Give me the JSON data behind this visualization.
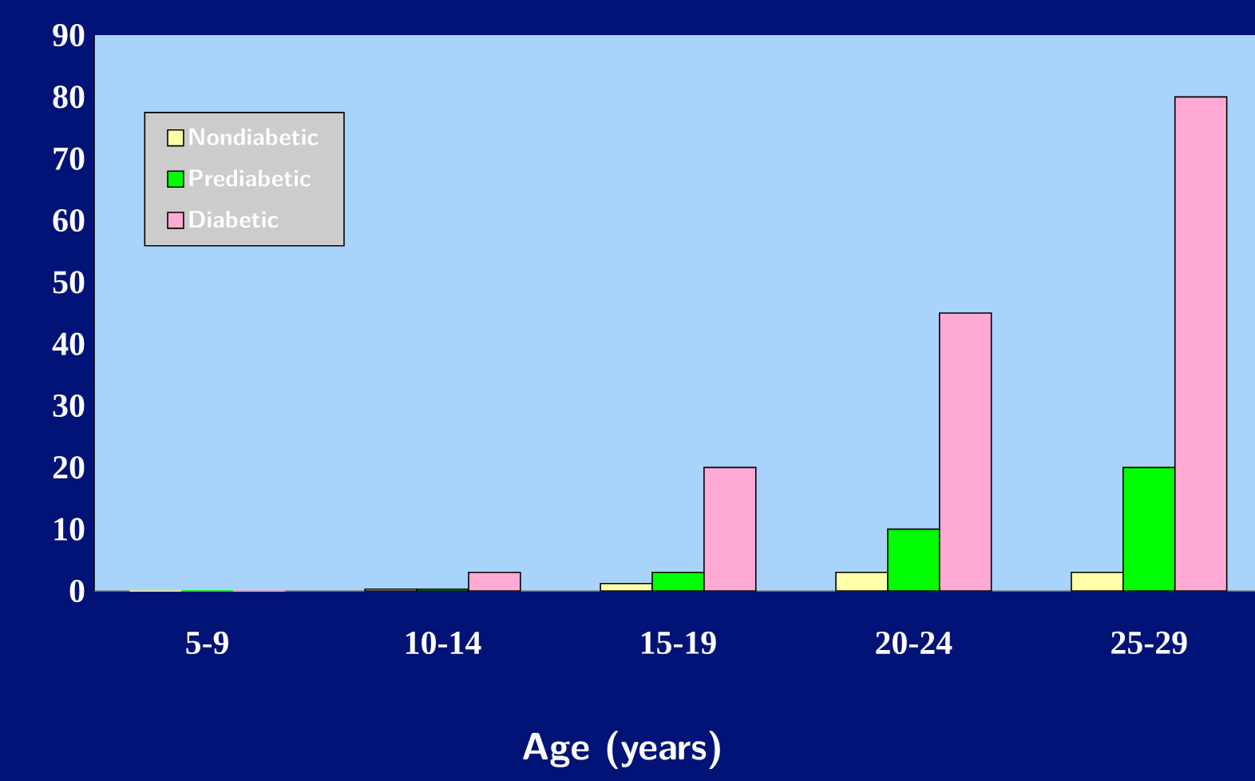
{
  "chart_data": {
    "type": "bar",
    "xlabel": "Age (years)",
    "categories": [
      "5-9",
      "10-14",
      "15-19",
      "20-24",
      "25-29"
    ],
    "series": [
      {
        "name": "Nondiabetic",
        "color": "#ffffa8",
        "values": [
          0,
          0.3,
          1.2,
          3,
          3
        ]
      },
      {
        "name": "Prediabetic",
        "color": "#00ff00",
        "values": [
          0,
          0.3,
          3,
          10,
          20
        ]
      },
      {
        "name": "Diabetic",
        "color": "#ffaad4",
        "values": [
          0,
          3,
          20,
          45,
          80
        ]
      }
    ],
    "ylim": [
      0,
      90
    ],
    "yticks": [
      0,
      10,
      20,
      30,
      40,
      50,
      60,
      70,
      80,
      90
    ],
    "legend": "top left",
    "grid": false
  }
}
